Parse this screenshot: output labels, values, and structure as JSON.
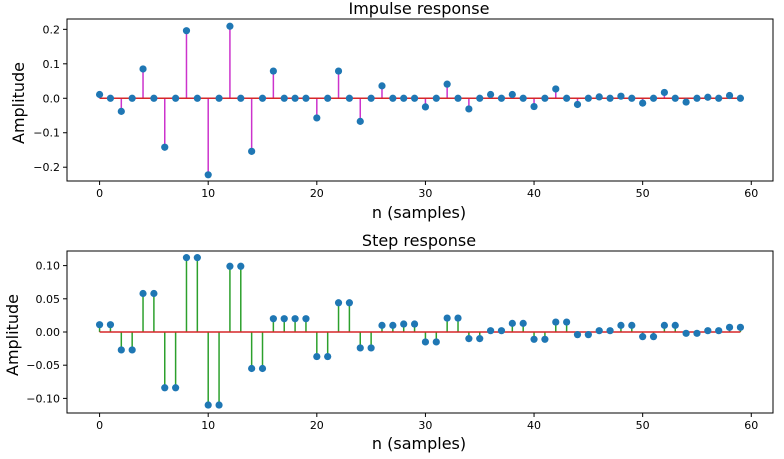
{
  "chart_data": [
    {
      "type": "stem",
      "title": "Impulse response",
      "xlabel": "n (samples)",
      "ylabel": "Amplitude",
      "xlim": [
        -3,
        62
      ],
      "ylim": [
        -0.24,
        0.23
      ],
      "xticks": [
        0,
        10,
        20,
        30,
        40,
        50,
        60
      ],
      "xtick_labels": [
        "0",
        "10",
        "20",
        "30",
        "40",
        "50",
        "60"
      ],
      "yticks": [
        0.2,
        0.1,
        0.0,
        -0.1,
        -0.2
      ],
      "ytick_labels": [
        "0.2",
        "0.1",
        "0.0",
        "−0.1",
        "−0.2"
      ],
      "stem_color": "#cc33cc",
      "marker_color": "#1f77b4",
      "baseline_color": "#d62728",
      "x": [
        0,
        1,
        2,
        3,
        4,
        5,
        6,
        7,
        8,
        9,
        10,
        11,
        12,
        13,
        14,
        15,
        16,
        17,
        18,
        19,
        20,
        21,
        22,
        23,
        24,
        25,
        26,
        27,
        28,
        29,
        30,
        31,
        32,
        33,
        34,
        35,
        36,
        37,
        38,
        39,
        40,
        41,
        42,
        43,
        44,
        45,
        46,
        47,
        48,
        49,
        50,
        51,
        52,
        53,
        54,
        55,
        56,
        57,
        58,
        59
      ],
      "values": [
        0.011,
        0,
        -0.038,
        0,
        0.085,
        0,
        -0.142,
        0,
        0.196,
        0,
        -0.222,
        0,
        0.209,
        0,
        -0.154,
        0,
        0.079,
        0,
        0,
        0,
        -0.057,
        0,
        0.079,
        0,
        -0.067,
        0,
        0.036,
        0,
        0,
        0,
        -0.025,
        0,
        0.041,
        0,
        -0.031,
        0,
        0.011,
        0,
        0.011,
        0,
        -0.024,
        0,
        0.027,
        0,
        -0.018,
        0,
        0.004,
        0,
        0.006,
        0,
        -0.014,
        0,
        0.017,
        0,
        -0.011,
        0,
        0.003,
        0,
        0.008,
        0
      ]
    },
    {
      "type": "stem",
      "title": "Step response",
      "xlabel": "n (samples)",
      "ylabel": "Amplitude",
      "xlim": [
        -3,
        62
      ],
      "ylim": [
        -0.122,
        0.122
      ],
      "xticks": [
        0,
        10,
        20,
        30,
        40,
        50,
        60
      ],
      "xtick_labels": [
        "0",
        "10",
        "20",
        "30",
        "40",
        "50",
        "60"
      ],
      "yticks": [
        0.1,
        0.05,
        0.0,
        -0.05,
        -0.1
      ],
      "ytick_labels": [
        "0.10",
        "0.05",
        "0.00",
        "−0.05",
        "−0.10"
      ],
      "stem_color": "#2ca02c",
      "marker_color": "#1f77b4",
      "baseline_color": "#d62728",
      "x": [
        0,
        1,
        2,
        3,
        4,
        5,
        6,
        7,
        8,
        9,
        10,
        11,
        12,
        13,
        14,
        15,
        16,
        17,
        18,
        19,
        20,
        21,
        22,
        23,
        24,
        25,
        26,
        27,
        28,
        29,
        30,
        31,
        32,
        33,
        34,
        35,
        36,
        37,
        38,
        39,
        40,
        41,
        42,
        43,
        44,
        45,
        46,
        47,
        48,
        49,
        50,
        51,
        52,
        53,
        54,
        55,
        56,
        57,
        58,
        59
      ],
      "values": [
        0.011,
        0.011,
        -0.027,
        -0.027,
        0.058,
        0.058,
        -0.084,
        -0.084,
        0.112,
        0.112,
        -0.11,
        -0.11,
        0.099,
        0.099,
        -0.055,
        -0.055,
        0.02,
        0.02,
        0.02,
        0.02,
        -0.037,
        -0.037,
        0.044,
        0.044,
        -0.024,
        -0.024,
        0.01,
        0.01,
        0.012,
        0.012,
        -0.015,
        -0.015,
        0.021,
        0.021,
        -0.01,
        -0.01,
        0.002,
        0.002,
        0.013,
        0.013,
        -0.011,
        -0.011,
        0.015,
        0.015,
        -0.004,
        -0.004,
        0.002,
        0.002,
        0.01,
        0.01,
        -0.007,
        -0.007,
        0.01,
        0.01,
        -0.002,
        -0.002,
        0.002,
        0.002,
        0.007,
        0.007
      ]
    }
  ]
}
